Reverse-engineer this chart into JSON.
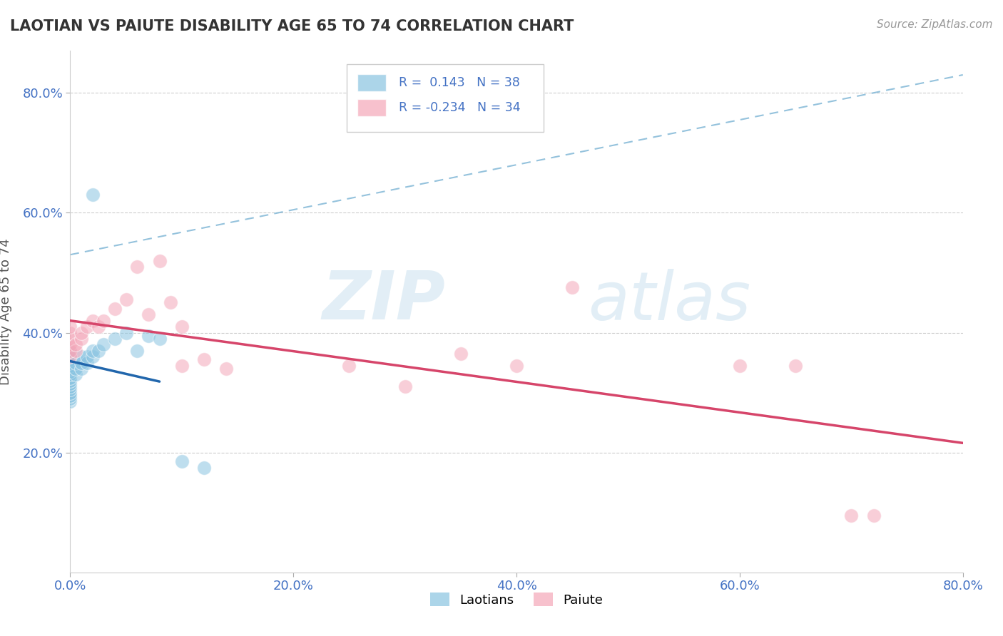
{
  "title": "LAOTIAN VS PAIUTE DISABILITY AGE 65 TO 74 CORRELATION CHART",
  "source_text": "Source: ZipAtlas.com",
  "ylabel": "Disability Age 65 to 74",
  "xmin": 0.0,
  "xmax": 0.8,
  "ymin": 0.0,
  "ymax": 0.87,
  "xticks": [
    0.0,
    0.2,
    0.4,
    0.6,
    0.8
  ],
  "yticks": [
    0.2,
    0.4,
    0.6,
    0.8
  ],
  "ytick_labels": [
    "20.0%",
    "40.0%",
    "60.0%",
    "80.0%"
  ],
  "xtick_labels": [
    "0.0%",
    "20.0%",
    "40.0%",
    "60.0%",
    "80.0%"
  ],
  "blue_color": "#89c4e1",
  "pink_color": "#f4a7b9",
  "line_blue_color": "#2166ac",
  "line_pink_color": "#d6456a",
  "diag_color": "#7ab3d4",
  "blue_scatter": [
    [
      0.0,
      0.285
    ],
    [
      0.0,
      0.29
    ],
    [
      0.0,
      0.295
    ],
    [
      0.0,
      0.3
    ],
    [
      0.0,
      0.305
    ],
    [
      0.0,
      0.31
    ],
    [
      0.0,
      0.315
    ],
    [
      0.0,
      0.32
    ],
    [
      0.0,
      0.325
    ],
    [
      0.0,
      0.33
    ],
    [
      0.0,
      0.335
    ],
    [
      0.0,
      0.34
    ],
    [
      0.0,
      0.345
    ],
    [
      0.0,
      0.35
    ],
    [
      0.0,
      0.355
    ],
    [
      0.0,
      0.36
    ],
    [
      0.0,
      0.365
    ],
    [
      0.0,
      0.37
    ],
    [
      0.005,
      0.33
    ],
    [
      0.005,
      0.34
    ],
    [
      0.005,
      0.35
    ],
    [
      0.01,
      0.34
    ],
    [
      0.01,
      0.35
    ],
    [
      0.01,
      0.36
    ],
    [
      0.015,
      0.35
    ],
    [
      0.015,
      0.36
    ],
    [
      0.02,
      0.36
    ],
    [
      0.02,
      0.37
    ],
    [
      0.025,
      0.37
    ],
    [
      0.03,
      0.38
    ],
    [
      0.04,
      0.39
    ],
    [
      0.05,
      0.4
    ],
    [
      0.06,
      0.37
    ],
    [
      0.07,
      0.395
    ],
    [
      0.08,
      0.39
    ],
    [
      0.02,
      0.63
    ],
    [
      0.1,
      0.185
    ],
    [
      0.12,
      0.175
    ]
  ],
  "pink_scatter": [
    [
      0.0,
      0.36
    ],
    [
      0.0,
      0.37
    ],
    [
      0.0,
      0.38
    ],
    [
      0.0,
      0.39
    ],
    [
      0.0,
      0.4
    ],
    [
      0.0,
      0.41
    ],
    [
      0.005,
      0.37
    ],
    [
      0.005,
      0.38
    ],
    [
      0.01,
      0.39
    ],
    [
      0.01,
      0.4
    ],
    [
      0.015,
      0.41
    ],
    [
      0.02,
      0.42
    ],
    [
      0.025,
      0.41
    ],
    [
      0.03,
      0.42
    ],
    [
      0.04,
      0.44
    ],
    [
      0.05,
      0.455
    ],
    [
      0.06,
      0.51
    ],
    [
      0.07,
      0.43
    ],
    [
      0.08,
      0.52
    ],
    [
      0.09,
      0.45
    ],
    [
      0.1,
      0.41
    ],
    [
      0.1,
      0.345
    ],
    [
      0.12,
      0.355
    ],
    [
      0.14,
      0.34
    ],
    [
      0.25,
      0.345
    ],
    [
      0.3,
      0.31
    ],
    [
      0.35,
      0.365
    ],
    [
      0.4,
      0.345
    ],
    [
      0.45,
      0.475
    ],
    [
      0.6,
      0.345
    ],
    [
      0.65,
      0.345
    ],
    [
      0.7,
      0.095
    ],
    [
      0.72,
      0.095
    ]
  ],
  "watermark_zip": "ZIP",
  "watermark_atlas": "atlas",
  "background_color": "#ffffff",
  "grid_color": "#c8c8c8"
}
